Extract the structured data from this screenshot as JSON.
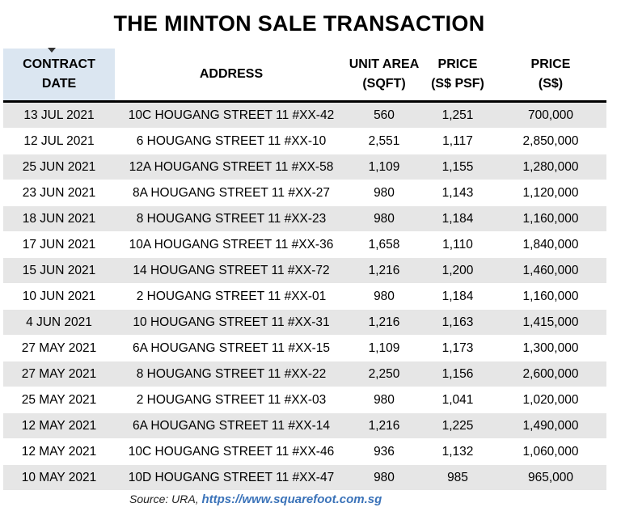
{
  "title": "THE MINTON SALE TRANSACTION",
  "headers": {
    "date_line1": "CONTRACT",
    "date_line2": "DATE",
    "address": "ADDRESS",
    "area_line1": "UNIT AREA",
    "area_line2": "(SQFT)",
    "psf_line1": "PRICE",
    "psf_line2": "(S$ PSF)",
    "price_line1": "PRICE",
    "price_line2": "(S$)"
  },
  "rows": [
    {
      "date": "13 JUL 2021",
      "address": "10C HOUGANG STREET 11 #XX-42",
      "area": "560",
      "psf": "1,251",
      "price": "700,000"
    },
    {
      "date": "12 JUL 2021",
      "address": "6 HOUGANG STREET 11 #XX-10",
      "area": "2,551",
      "psf": "1,117",
      "price": "2,850,000"
    },
    {
      "date": "25 JUN 2021",
      "address": "12A HOUGANG STREET 11 #XX-58",
      "area": "1,109",
      "psf": "1,155",
      "price": "1,280,000"
    },
    {
      "date": "23 JUN 2021",
      "address": "8A HOUGANG STREET 11 #XX-27",
      "area": "980",
      "psf": "1,143",
      "price": "1,120,000"
    },
    {
      "date": "18 JUN 2021",
      "address": "8 HOUGANG STREET 11 #XX-23",
      "area": "980",
      "psf": "1,184",
      "price": "1,160,000"
    },
    {
      "date": "17 JUN 2021",
      "address": "10A HOUGANG STREET 11 #XX-36",
      "area": "1,658",
      "psf": "1,110",
      "price": "1,840,000"
    },
    {
      "date": "15 JUN 2021",
      "address": "14 HOUGANG STREET 11 #XX-72",
      "area": "1,216",
      "psf": "1,200",
      "price": "1,460,000"
    },
    {
      "date": "10 JUN 2021",
      "address": "2 HOUGANG STREET 11 #XX-01",
      "area": "980",
      "psf": "1,184",
      "price": "1,160,000"
    },
    {
      "date": "4 JUN 2021",
      "address": "10 HOUGANG STREET 11 #XX-31",
      "area": "1,216",
      "psf": "1,163",
      "price": "1,415,000"
    },
    {
      "date": "27 MAY 2021",
      "address": "6A HOUGANG STREET 11 #XX-15",
      "area": "1,109",
      "psf": "1,173",
      "price": "1,300,000"
    },
    {
      "date": "27 MAY 2021",
      "address": "8 HOUGANG STREET 11 #XX-22",
      "area": "2,250",
      "psf": "1,156",
      "price": "2,600,000"
    },
    {
      "date": "25 MAY 2021",
      "address": "2 HOUGANG STREET 11 #XX-03",
      "area": "980",
      "psf": "1,041",
      "price": "1,020,000"
    },
    {
      "date": "12 MAY 2021",
      "address": "6A HOUGANG STREET 11 #XX-14",
      "area": "1,216",
      "psf": "1,225",
      "price": "1,490,000"
    },
    {
      "date": "12 MAY 2021",
      "address": "10C HOUGANG STREET 11 #XX-46",
      "area": "936",
      "psf": "1,132",
      "price": "1,060,000"
    },
    {
      "date": "10 MAY 2021",
      "address": "10D HOUGANG STREET 11 #XX-47",
      "area": "980",
      "psf": "985",
      "price": "965,000"
    }
  ],
  "source": {
    "label": "Source: URA,",
    "url": "https://www.squarefoot.com.sg"
  },
  "colors": {
    "sorted_header_bg": "#dbe6f1",
    "stripe_bg": "#e6e6e6",
    "link": "#3b73b9"
  },
  "icons": {
    "sort": "sort-down-icon"
  }
}
